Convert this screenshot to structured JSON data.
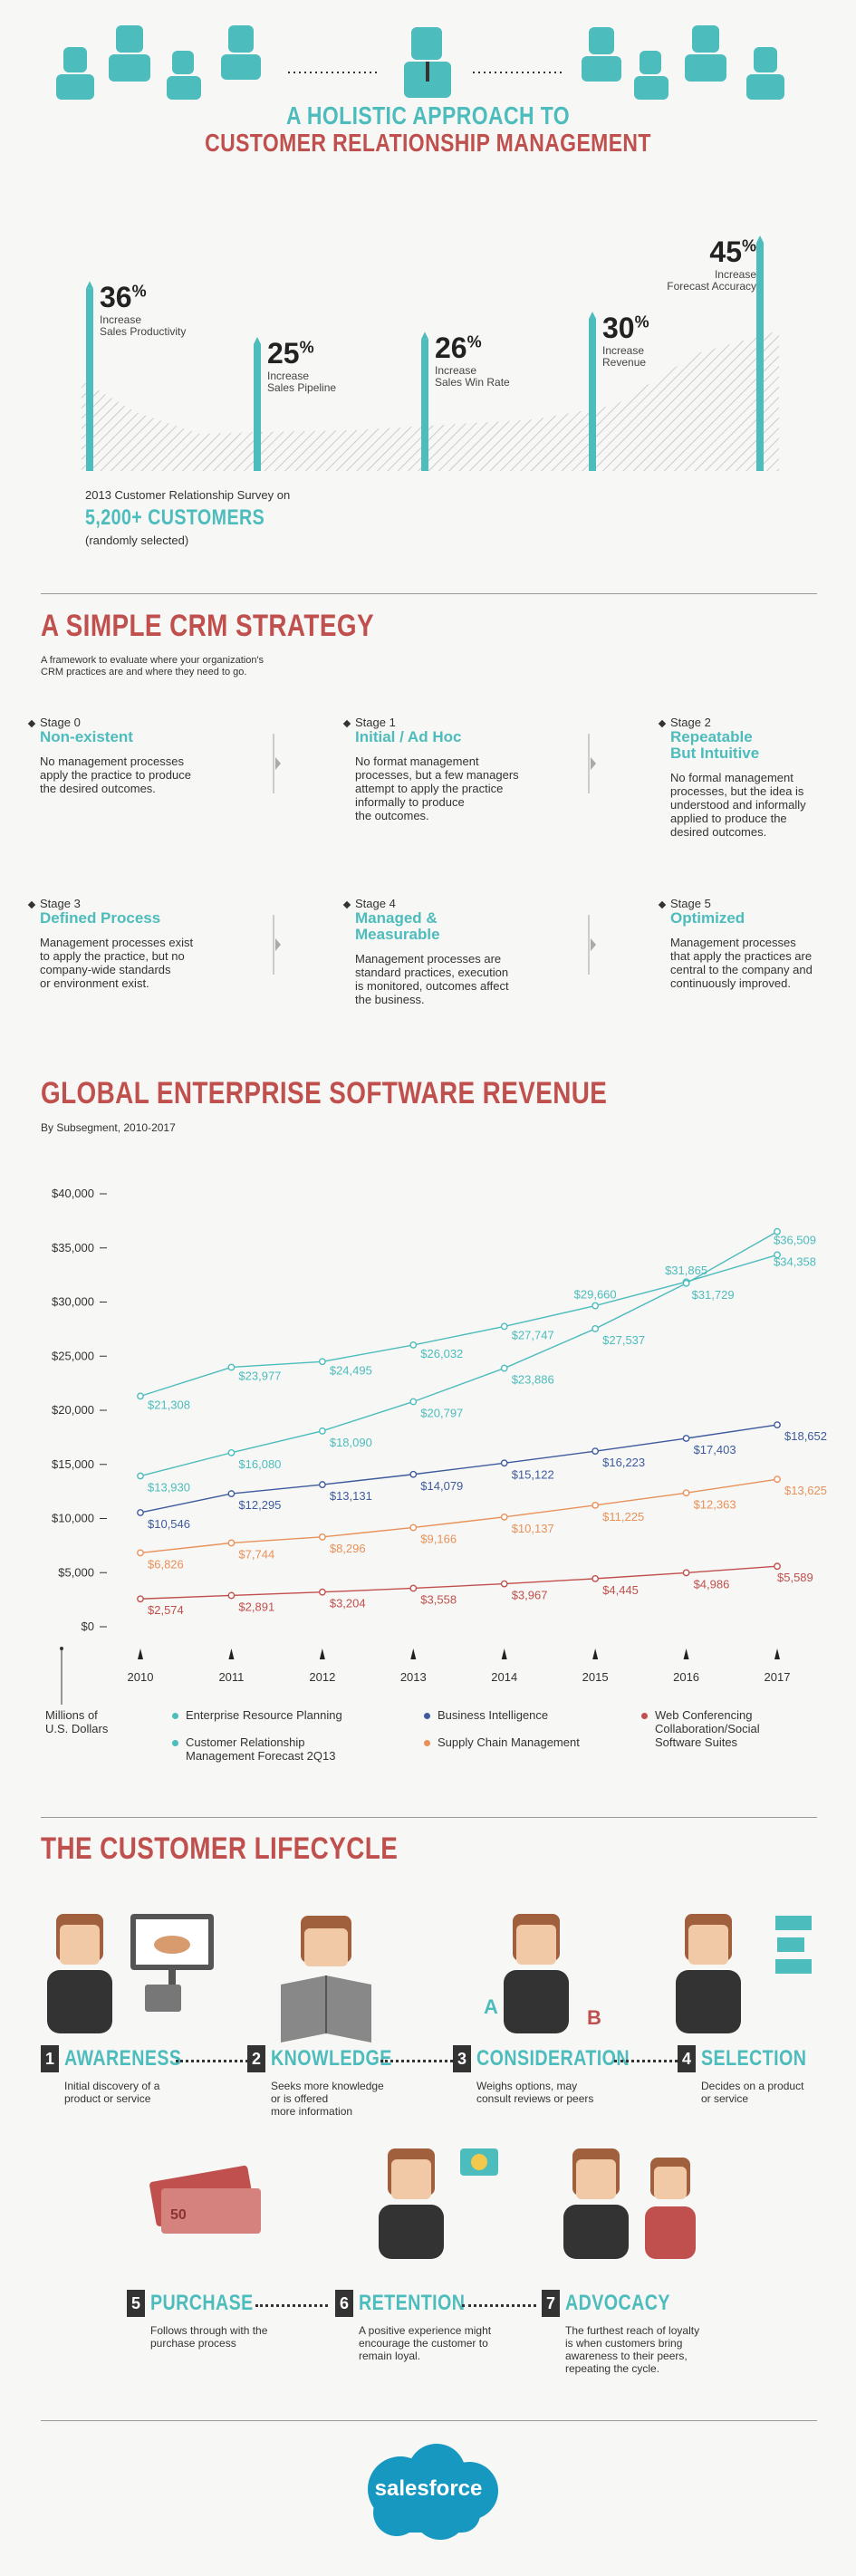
{
  "header": {
    "title_line1": "A HOLISTIC APPROACH TO",
    "title_line2": "CUSTOMER RELATIONSHIP MANAGEMENT"
  },
  "stats": [
    {
      "value": "36",
      "unit": "%",
      "label1": "Increase",
      "label2": "Sales Productivity",
      "level": 36
    },
    {
      "value": "25",
      "unit": "%",
      "label1": "Increase",
      "label2": "Sales Pipeline",
      "level": 25
    },
    {
      "value": "26",
      "unit": "%",
      "label1": "Increase",
      "label2": "Sales Win Rate",
      "level": 26
    },
    {
      "value": "30",
      "unit": "%",
      "label1": "Increase",
      "label2": "Revenue",
      "level": 30
    },
    {
      "value": "45",
      "unit": "%",
      "label1": "Increase",
      "label2": "Forecast Accuracy",
      "level": 45
    }
  ],
  "survey": {
    "line1": "2013 Customer Relationship Survey on",
    "count": "5,200+ CUSTOMERS",
    "line3": "(randomly selected)"
  },
  "strategy": {
    "title": "A SIMPLE CRM STRATEGY",
    "intro_line1": "A framework to evaluate where your organization's",
    "intro_line2": "CRM practices are and where they need to go.",
    "stages": [
      {
        "num": "Stage 0",
        "name1": "Non-existent",
        "name2": "",
        "desc": [
          "No management processes",
          "apply the practice to produce",
          "the desired outcomes."
        ]
      },
      {
        "num": "Stage 1",
        "name1": "Initial / Ad Hoc",
        "name2": "",
        "desc": [
          "No format management",
          "processes, but a few managers",
          "attempt to apply the practice",
          "informally to produce",
          "the outcomes."
        ]
      },
      {
        "num": "Stage 2",
        "name1": "Repeatable",
        "name2": "But Intuitive",
        "desc": [
          "No formal management",
          "processes, but the idea is",
          "understood and informally",
          "applied to produce the",
          "desired outcomes."
        ]
      },
      {
        "num": "Stage 3",
        "name1": "Defined Process",
        "name2": "",
        "desc": [
          "Management processes exist",
          "to apply the practice, but no",
          "company-wide standards",
          "or environment exist."
        ]
      },
      {
        "num": "Stage 4",
        "name1": "Managed &",
        "name2": "Measurable",
        "desc": [
          "Management processes are",
          "standard practices, execution",
          "is monitored, outcomes affect",
          "the business."
        ]
      },
      {
        "num": "Stage 5",
        "name1": "Optimized",
        "name2": "",
        "desc": [
          "Management processes",
          "that apply the practices are",
          "central to the company and",
          "continuously improved."
        ]
      }
    ]
  },
  "revenue": {
    "title": "GLOBAL ENTERPRISE SOFTWARE REVENUE",
    "subtitle": "By Subsegment, 2010-2017",
    "units_label1": "Millions of",
    "units_label2": "U.S. Dollars"
  },
  "chart_data": {
    "type": "line",
    "title": "GLOBAL ENTERPRISE SOFTWARE REVENUE",
    "subtitle": "By Subsegment, 2010-2017",
    "ylabel": "Millions of U.S. Dollars",
    "x": [
      "2010",
      "2011",
      "2012",
      "2013",
      "2014",
      "2015",
      "2016",
      "2017"
    ],
    "ylim": [
      0,
      40000
    ],
    "yticks": [
      "$0",
      "$5,000",
      "$10,000",
      "$15,000",
      "$20,000",
      "$25,000",
      "$30,000",
      "$35,000",
      "$40,000"
    ],
    "yticks_values": [
      0,
      5000,
      10000,
      15000,
      20000,
      25000,
      30000,
      35000,
      40000
    ],
    "legend_position": "bottom",
    "series": [
      {
        "name": "Enterprise Resource Planning",
        "color": "#4dbcbd",
        "values": [
          21308,
          23977,
          24495,
          26032,
          27747,
          29660,
          31865,
          34358
        ],
        "labels": [
          "$21,308",
          "$23,977",
          "$24,495",
          "$26,032",
          "$27,747",
          "$29,660",
          "$31,865",
          "$34,358"
        ]
      },
      {
        "name": "Customer Relationship Management Forecast 2Q13",
        "color": "#4dbcbd",
        "values": [
          13930,
          16080,
          18090,
          20797,
          23886,
          27537,
          31729,
          36509
        ],
        "labels": [
          "$13,930",
          "$16,080",
          "$18,090",
          "$20,797",
          "$23,886",
          "$27,537",
          "$31,729",
          "$36,509"
        ]
      },
      {
        "name": "Business Intelligence",
        "color": "#3e5b9e",
        "values": [
          10546,
          12295,
          13131,
          14079,
          15122,
          16223,
          17403,
          18652
        ],
        "labels": [
          "$10,546",
          "$12,295",
          "$13,131",
          "$14,079",
          "$15,122",
          "$16,223",
          "$17,403",
          "$18,652"
        ]
      },
      {
        "name": "Supply Chain Management",
        "color": "#e8915a",
        "values": [
          6826,
          7744,
          8296,
          9166,
          10137,
          11225,
          12363,
          13625
        ],
        "labels": [
          "$6,826",
          "$7,744",
          "$8,296",
          "$9,166",
          "$10,137",
          "$11,225",
          "$12,363",
          "$13,625"
        ]
      },
      {
        "name": "Web Conferencing Collaboration/Social Software Suites",
        "color": "#c0504d",
        "values": [
          2574,
          2891,
          3204,
          3558,
          3967,
          4445,
          4986,
          5589
        ],
        "labels": [
          "$2,574",
          "$2,891",
          "$3,204",
          "$3,558",
          "$3,967",
          "$4,445",
          "$4,986",
          "$5,589"
        ]
      }
    ]
  },
  "legend": {
    "erp": "Enterprise Resource Planning",
    "crm1": "Customer Relationship",
    "crm2": "Management Forecast 2Q13",
    "bi": "Business Intelligence",
    "scm": "Supply Chain Management",
    "web1": "Web Conferencing",
    "web2": "Collaboration/Social",
    "web3": "Software Suites"
  },
  "lifecycle": {
    "title": "THE CUSTOMER LIFECYCLE",
    "steps": [
      {
        "num": "1",
        "name": "AWARENESS",
        "desc": [
          "Initial discovery of a",
          "product or service"
        ]
      },
      {
        "num": "2",
        "name": "KNOWLEDGE",
        "desc": [
          "Seeks more knowledge",
          "or is offered",
          "more information"
        ]
      },
      {
        "num": "3",
        "name": "CONSIDERATION",
        "desc": [
          "Weighs options, may",
          "consult reviews or peers"
        ]
      },
      {
        "num": "4",
        "name": "SELECTION",
        "desc": [
          "Decides on a product",
          "or service"
        ]
      },
      {
        "num": "5",
        "name": "PURCHASE",
        "desc": [
          "Follows through with the",
          "purchase process"
        ]
      },
      {
        "num": "6",
        "name": "RETENTION",
        "desc": [
          "A positive experience might",
          "encourage the customer to",
          "remain loyal."
        ]
      },
      {
        "num": "7",
        "name": "ADVOCACY",
        "desc": [
          "The furthest reach of loyalty",
          "is when customers bring",
          "awareness to their peers,",
          "repeating the cycle."
        ]
      }
    ],
    "illustration_text": {
      "a": "A",
      "b": "B",
      "bill": "50"
    }
  },
  "footer": {
    "brand": "salesforce"
  },
  "colors": {
    "teal": "#4dbcbd",
    "red": "#c0504d",
    "navy": "#3e5b9e",
    "orange": "#e8915a",
    "brand": "#1798c1"
  }
}
